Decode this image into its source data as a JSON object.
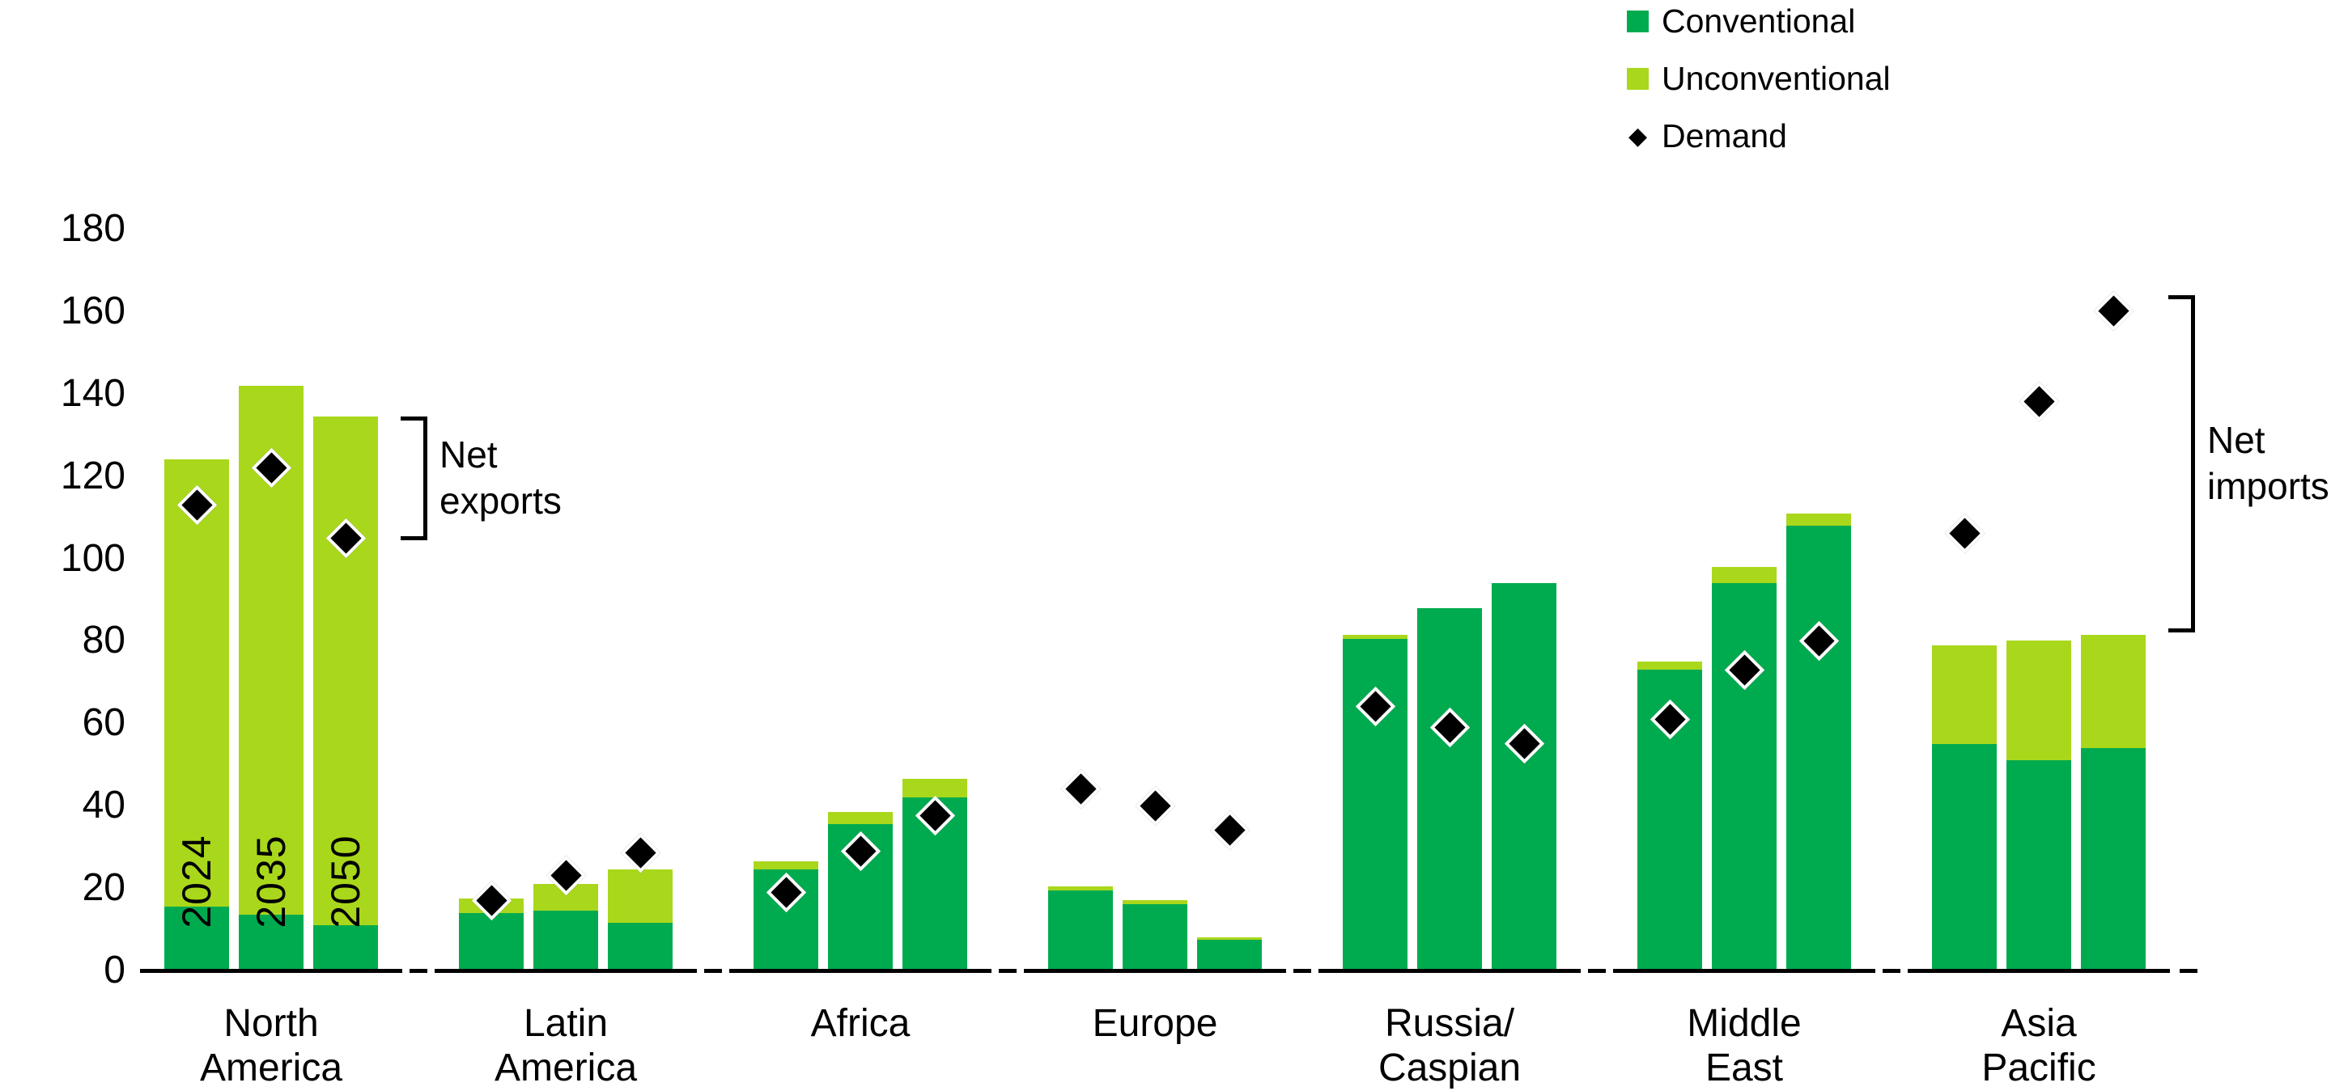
{
  "chart_data": {
    "type": "bar",
    "subtype": "stacked-bars-with-point-markers",
    "years": [
      "2024",
      "2035",
      "2050"
    ],
    "y_axis": {
      "min": 0,
      "max": 180,
      "tick_step": 20,
      "ticks": [
        180,
        160,
        140,
        120,
        100,
        80,
        60,
        40,
        20,
        0
      ],
      "gridlines": false
    },
    "colors": {
      "conventional": "#00AB4F",
      "unconventional": "#A9D71B",
      "demand": "#000000",
      "axis": "#000000",
      "text": "#000000",
      "background": "#ffffff"
    },
    "legend": [
      {
        "label": "Conventional",
        "marker": "square",
        "color": "#00AB4F"
      },
      {
        "label": "Unconventional",
        "marker": "square",
        "color": "#A9D71B"
      },
      {
        "label": "Demand",
        "marker": "diamond",
        "color": "#000000"
      }
    ],
    "legend_position": "top-right",
    "regions": [
      {
        "name": "North America",
        "name_lines": [
          "North",
          "America"
        ],
        "conventional": [
          15.5,
          13.5,
          11
        ],
        "unconventional": [
          108.5,
          128.5,
          123.5
        ],
        "production_total": [
          124,
          142,
          134.5
        ],
        "demand": [
          113,
          122,
          105
        ]
      },
      {
        "name": "Latin America",
        "name_lines": [
          "Latin",
          "America"
        ],
        "conventional": [
          14,
          14.5,
          11.5
        ],
        "unconventional": [
          3.5,
          6.5,
          13
        ],
        "production_total": [
          17.5,
          21,
          24.5
        ],
        "demand": [
          17,
          23,
          28.5
        ]
      },
      {
        "name": "Africa",
        "name_lines": [
          "Africa"
        ],
        "conventional": [
          24.5,
          35.5,
          42
        ],
        "unconventional": [
          2,
          3,
          4.5
        ],
        "production_total": [
          26.5,
          38.5,
          46.5
        ],
        "demand": [
          19,
          29,
          37.5
        ]
      },
      {
        "name": "Europe",
        "name_lines": [
          "Europe"
        ],
        "conventional": [
          19.5,
          16,
          7.5
        ],
        "unconventional": [
          1,
          1,
          0.5
        ],
        "production_total": [
          20.5,
          17,
          8
        ],
        "demand": [
          44,
          40,
          34
        ]
      },
      {
        "name": "Russia/Caspian",
        "name_lines": [
          "Russia/",
          "Caspian"
        ],
        "conventional": [
          80.5,
          88,
          94
        ],
        "unconventional": [
          1,
          0,
          0
        ],
        "production_total": [
          81.5,
          88,
          94
        ],
        "demand": [
          64,
          59,
          55
        ]
      },
      {
        "name": "Middle East",
        "name_lines": [
          "Middle",
          "East"
        ],
        "conventional": [
          73,
          94,
          108
        ],
        "unconventional": [
          2,
          4,
          3
        ],
        "production_total": [
          75,
          98,
          111
        ],
        "demand": [
          61,
          73,
          80
        ]
      },
      {
        "name": "Asia Pacific",
        "name_lines": [
          "Asia",
          "Pacific"
        ],
        "conventional": [
          55,
          51,
          54
        ],
        "unconventional": [
          24,
          29,
          27.5
        ],
        "production_total": [
          79,
          80,
          81.5
        ],
        "demand": [
          106,
          138,
          160
        ]
      }
    ],
    "annotations": [
      {
        "id": "net-exports",
        "label": "Net exports",
        "lines": [
          "Net",
          "exports"
        ],
        "region_index": 0,
        "from_value": 104.5,
        "to_value": 134.5
      },
      {
        "id": "net-imports",
        "label": "Net imports",
        "lines": [
          "Net",
          "imports"
        ],
        "region_index": 6,
        "from_value": 82,
        "to_value": 164
      }
    ]
  }
}
